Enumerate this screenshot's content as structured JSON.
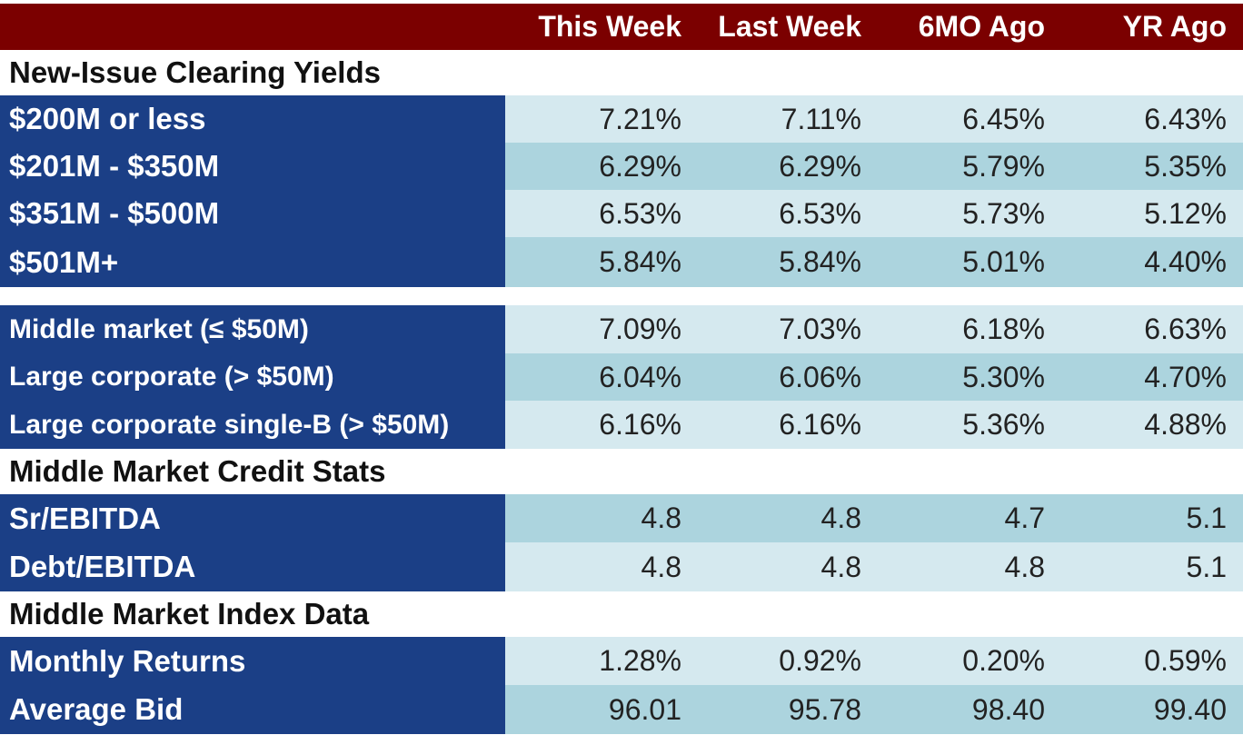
{
  "columns": [
    "This Week",
    "Last Week",
    "6MO Ago",
    "YR Ago"
  ],
  "sections": {
    "new_issue": "New-Issue Clearing Yields",
    "credit_stats": "Middle Market Credit Stats",
    "index_data": "Middle Market Index Data"
  },
  "rows": [
    {
      "label": "$200M or less",
      "values": [
        "7.21%",
        "7.11%",
        "6.45%",
        "6.43%"
      ]
    },
    {
      "label": "$201M - $350M",
      "values": [
        "6.29%",
        "6.29%",
        "5.79%",
        "5.35%"
      ]
    },
    {
      "label": "$351M - $500M",
      "values": [
        "6.53%",
        "6.53%",
        "5.73%",
        "5.12%"
      ]
    },
    {
      "label": "$501M+",
      "values": [
        "5.84%",
        "5.84%",
        "5.01%",
        "4.40%"
      ]
    },
    {
      "label": "Middle market (≤ $50M)",
      "values": [
        "7.09%",
        "7.03%",
        "6.18%",
        "6.63%"
      ]
    },
    {
      "label": "Large corporate (> $50M)",
      "values": [
        "6.04%",
        "6.06%",
        "5.30%",
        "4.70%"
      ]
    },
    {
      "label": "Large corporate single-B (> $50M)",
      "values": [
        "6.16%",
        "6.16%",
        "5.36%",
        "4.88%"
      ]
    },
    {
      "label": "Sr/EBITDA",
      "values": [
        "4.8",
        "4.8",
        "4.7",
        "5.1"
      ]
    },
    {
      "label": "Debt/EBITDA",
      "values": [
        "4.8",
        "4.8",
        "4.8",
        "5.1"
      ]
    },
    {
      "label": "Monthly Returns",
      "values": [
        "1.28%",
        "0.92%",
        "0.20%",
        "0.59%"
      ]
    },
    {
      "label": "Average Bid",
      "values": [
        "96.01",
        "95.78",
        "98.40",
        "99.40"
      ]
    }
  ],
  "colors": {
    "header_bg": "#7b0000",
    "label_bg": "#1b3f86",
    "cell_light": "#d5e9ef",
    "cell_mid": "#acd4de"
  }
}
